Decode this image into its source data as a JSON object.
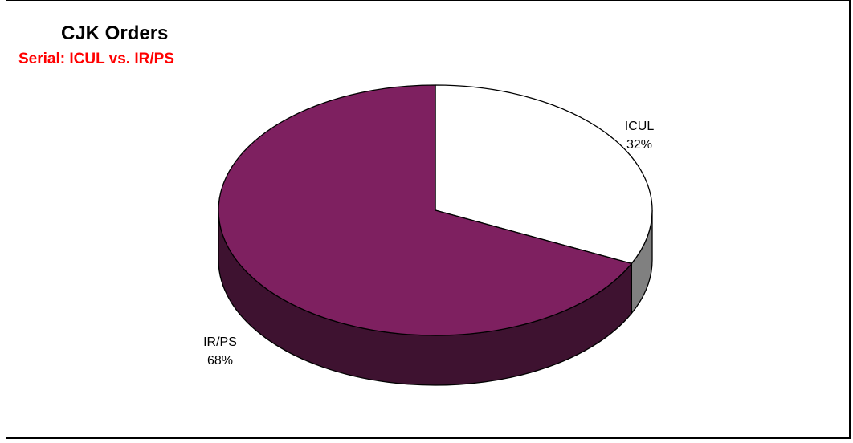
{
  "chart_data": {
    "type": "pie",
    "style": "3d",
    "title": "CJK Orders",
    "subtitle": "Serial: ICUL vs. IR/PS",
    "slices": [
      {
        "name": "ICUL",
        "value": 32,
        "label": "32%",
        "color": "#ffffff",
        "side_color": "#808080"
      },
      {
        "name": "IR/PS",
        "value": 68,
        "label": "68%",
        "color": "#7e2060",
        "side_color": "#3e1230"
      }
    ]
  },
  "colors": {
    "subtitle": "#ff0000",
    "outline": "#000000"
  }
}
